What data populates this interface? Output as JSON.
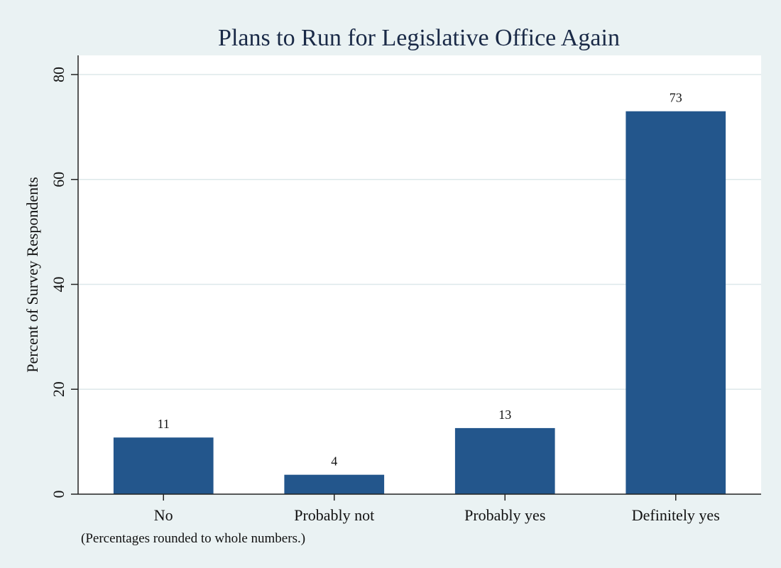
{
  "chart_data": {
    "type": "bar",
    "title": "Plans to Run for Legislative Office Again",
    "ylabel": "Percent of Survey Respondents",
    "xlabel": "",
    "categories": [
      "No",
      "Probably not",
      "Probably yes",
      "Definitely yes"
    ],
    "values": [
      10.8,
      3.7,
      12.6,
      73
    ],
    "data_labels": [
      "11",
      "4",
      "13",
      "73"
    ],
    "ylim": [
      0,
      80
    ],
    "yticks": [
      0,
      20,
      40,
      60,
      80
    ],
    "grid": true,
    "note": "(Percentages rounded to whole numbers.)",
    "colors": {
      "bar": "#23568c",
      "background": "#eaf2f3",
      "plot_background": "#ffffff",
      "title": "#1a2a47"
    }
  }
}
